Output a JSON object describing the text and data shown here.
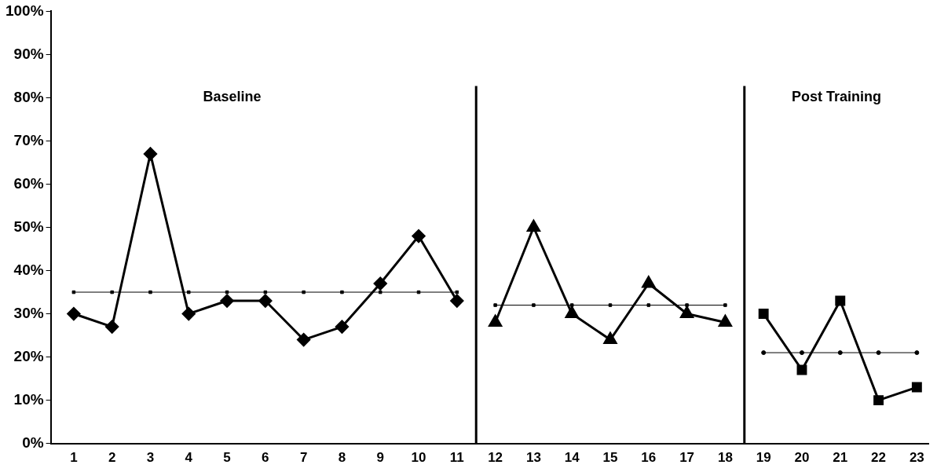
{
  "chart_data": {
    "type": "line",
    "xlim": [
      0.4,
      23.3
    ],
    "xticks": [
      1,
      2,
      3,
      4,
      5,
      6,
      7,
      8,
      9,
      10,
      11,
      12,
      13,
      14,
      15,
      16,
      17,
      18,
      19,
      20,
      21,
      22,
      23
    ],
    "ylim": [
      0,
      100
    ],
    "yticks": [
      {
        "value": 0,
        "label": "0%"
      },
      {
        "value": 10,
        "label": "10%"
      },
      {
        "value": 20,
        "label": "20%"
      },
      {
        "value": 30,
        "label": "30%"
      },
      {
        "value": 40,
        "label": "40%"
      },
      {
        "value": 50,
        "label": "50%"
      },
      {
        "value": 60,
        "label": "60%"
      },
      {
        "value": 70,
        "label": "70%"
      },
      {
        "value": 80,
        "label": "80%"
      },
      {
        "value": 90,
        "label": "90%"
      },
      {
        "value": 100,
        "label": "100%"
      }
    ],
    "grid": false,
    "legend": false,
    "series": [
      {
        "color": "#000000",
        "marker": "diamond",
        "x": [
          1,
          2,
          3,
          4,
          5,
          6,
          7,
          8,
          9,
          10,
          11
        ],
        "values": [
          30,
          27,
          67,
          30,
          33,
          33,
          24,
          27,
          37,
          48,
          33
        ]
      },
      {
        "color": "#000000",
        "marker": "triangle",
        "x": [
          12,
          13,
          14,
          15,
          16,
          17,
          18
        ],
        "values": [
          28,
          50,
          30,
          24,
          37,
          30,
          28
        ]
      },
      {
        "color": "#000000",
        "marker": "square",
        "x": [
          19,
          20,
          21,
          22,
          23
        ],
        "values": [
          30,
          17,
          33,
          10,
          13
        ]
      },
      {
        "color": "#000000",
        "marker": "square",
        "x": [
          1,
          2,
          3,
          4,
          5,
          6,
          7,
          8,
          9,
          10,
          11
        ],
        "values": [
          35,
          35,
          35,
          35,
          35,
          35,
          35,
          35,
          35,
          35,
          35
        ]
      },
      {
        "color": "#000000",
        "marker": "square",
        "x": [
          12,
          13,
          14,
          15,
          16,
          17,
          18
        ],
        "values": [
          32,
          32,
          32,
          32,
          32,
          32,
          32
        ]
      },
      {
        "color": "#000000",
        "marker": "circle",
        "x": [
          19,
          20,
          21,
          22,
          23
        ],
        "values": [
          21,
          21,
          21,
          21,
          21
        ]
      }
    ],
    "ref_lines": [
      {
        "axis": "x",
        "value": 11.5,
        "color": "#000000"
      },
      {
        "axis": "x",
        "value": 18.5,
        "color": "#000000"
      }
    ],
    "annotations": [
      "Baseline",
      "Post Training"
    ]
  }
}
